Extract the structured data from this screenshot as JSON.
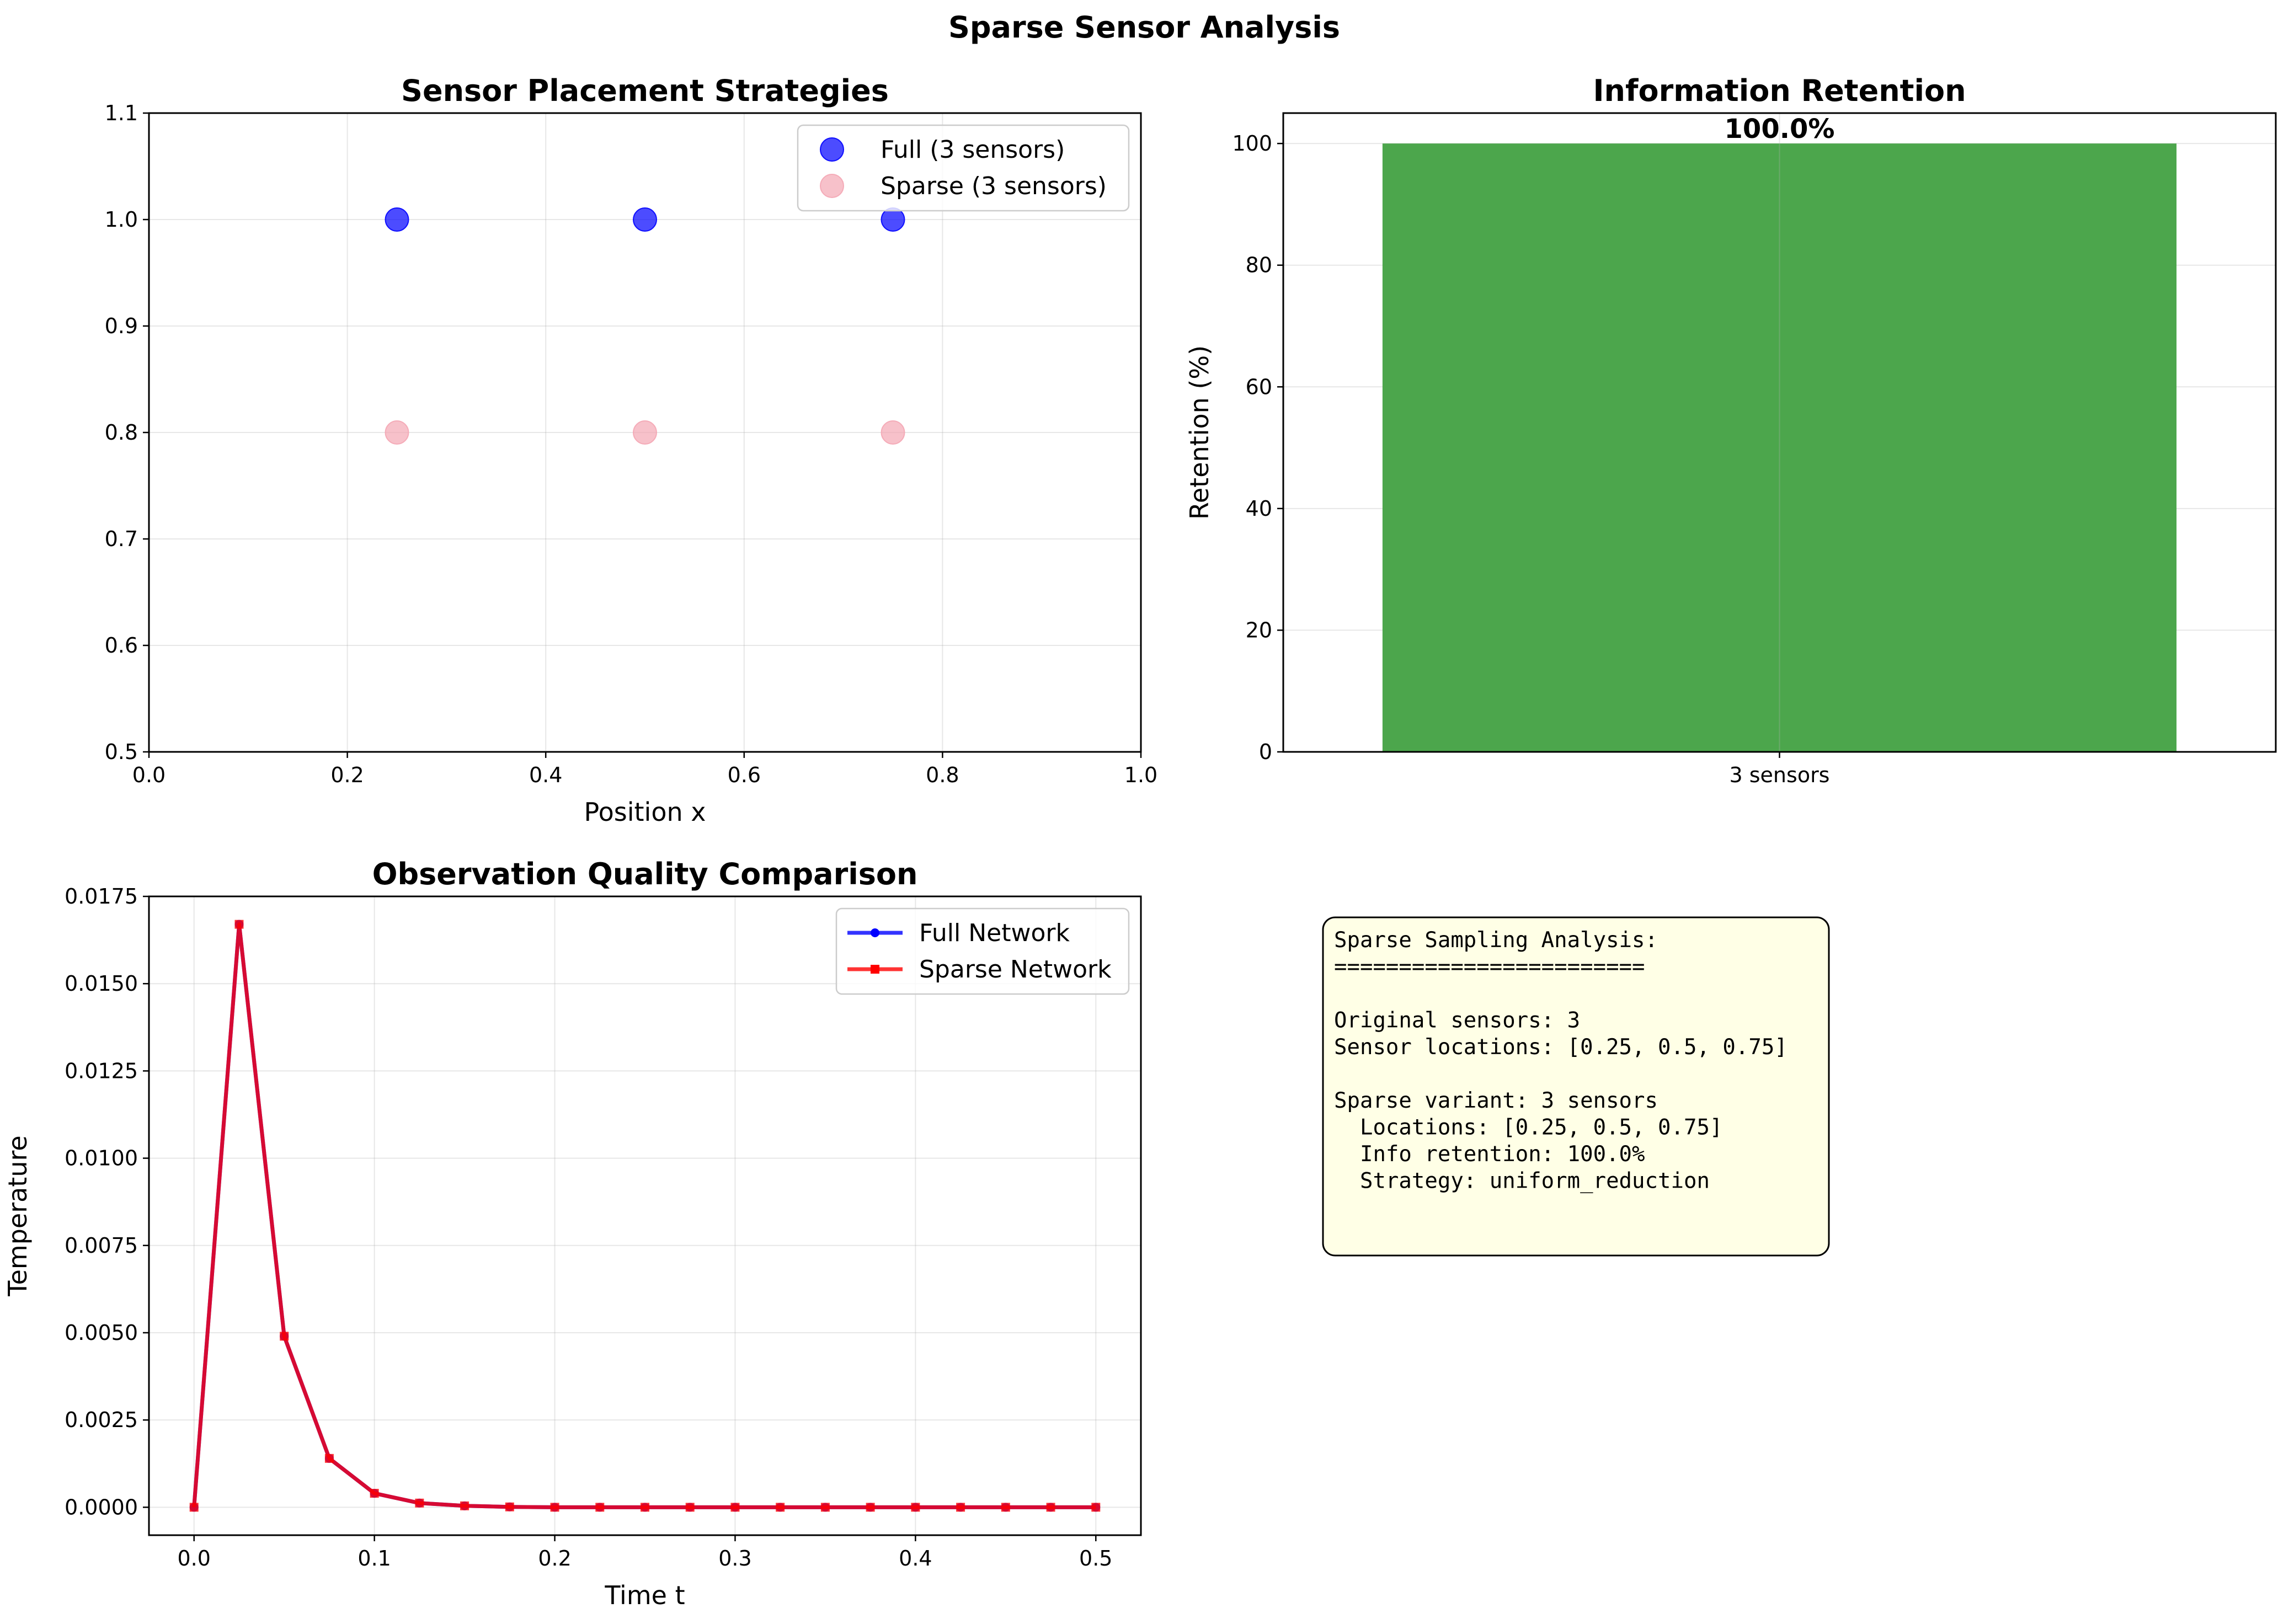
{
  "figure": {
    "suptitle": "Sparse Sensor Analysis"
  },
  "chart_data": [
    {
      "type": "scatter",
      "title": "Sensor Placement Strategies",
      "xlabel": "Position x",
      "ylabel": "",
      "xlim": [
        0.0,
        1.0
      ],
      "ylim": [
        0.5,
        1.1
      ],
      "xticks": [
        "0.0",
        "0.2",
        "0.4",
        "0.6",
        "0.8",
        "1.0"
      ],
      "xtick_values": [
        0.0,
        0.2,
        0.4,
        0.6,
        0.8,
        1.0
      ],
      "yticks": [
        "0.5",
        "0.6",
        "0.7",
        "0.8",
        "0.9",
        "1.0",
        "1.1"
      ],
      "ytick_values": [
        0.5,
        0.6,
        0.7,
        0.8,
        0.9,
        1.0,
        1.1
      ],
      "grid": true,
      "legend_position": "upper-right",
      "series": [
        {
          "name": "Full (3 sensors)",
          "color": "#0000ff",
          "x": [
            0.25,
            0.5,
            0.75
          ],
          "y": [
            1.0,
            1.0,
            1.0
          ]
        },
        {
          "name": "Sparse (3 sensors)",
          "color": "#f4a6b4",
          "x": [
            0.25,
            0.5,
            0.75
          ],
          "y": [
            0.8,
            0.8,
            0.8
          ]
        }
      ]
    },
    {
      "type": "bar",
      "title": "Information Retention",
      "xlabel": "",
      "ylabel": "Retention (%)",
      "categories": [
        "3 sensors"
      ],
      "values": [
        100.0
      ],
      "data_labels": [
        "100.0%"
      ],
      "color": "#4ca64c",
      "ylim": [
        0,
        105
      ],
      "yticks": [
        "0",
        "20",
        "40",
        "60",
        "80",
        "100"
      ],
      "ytick_values": [
        0,
        20,
        40,
        60,
        80,
        100
      ],
      "grid": true
    },
    {
      "type": "line",
      "title": "Observation Quality Comparison",
      "xlabel": "Time t",
      "ylabel": "Temperature",
      "xlim": [
        -0.025,
        0.525
      ],
      "ylim": [
        -0.0008,
        0.0175
      ],
      "xticks": [
        "0.0",
        "0.1",
        "0.2",
        "0.3",
        "0.4",
        "0.5"
      ],
      "xtick_values": [
        0.0,
        0.1,
        0.2,
        0.3,
        0.4,
        0.5
      ],
      "yticks": [
        "0.0000",
        "0.0025",
        "0.0050",
        "0.0075",
        "0.0100",
        "0.0125",
        "0.0150",
        "0.0175"
      ],
      "ytick_values": [
        0.0,
        0.0025,
        0.005,
        0.0075,
        0.01,
        0.0125,
        0.015,
        0.0175
      ],
      "grid": true,
      "legend_position": "upper-right",
      "x": [
        0.0,
        0.025,
        0.05,
        0.075,
        0.1,
        0.125,
        0.15,
        0.175,
        0.2,
        0.225,
        0.25,
        0.275,
        0.3,
        0.325,
        0.35,
        0.375,
        0.4,
        0.425,
        0.45,
        0.475,
        0.5
      ],
      "series": [
        {
          "name": "Full Network",
          "color": "#0000ff",
          "marker": "circle",
          "values": [
            0.0,
            0.0167,
            0.0049,
            0.0014,
            0.0004,
            0.00012,
            4e-05,
            1e-05,
            0.0,
            0.0,
            0.0,
            0.0,
            0.0,
            0.0,
            0.0,
            0.0,
            0.0,
            0.0,
            0.0,
            0.0,
            0.0
          ]
        },
        {
          "name": "Sparse Network",
          "color": "#ff0000",
          "marker": "square",
          "values": [
            0.0,
            0.0167,
            0.0049,
            0.0014,
            0.0004,
            0.00012,
            4e-05,
            1e-05,
            0.0,
            0.0,
            0.0,
            0.0,
            0.0,
            0.0,
            0.0,
            0.0,
            0.0,
            0.0,
            0.0,
            0.0,
            0.0
          ]
        }
      ]
    }
  ],
  "text_panel": {
    "lines": [
      "Sparse Sampling Analysis:",
      "========================",
      "",
      "Original sensors: 3",
      "Sensor locations: [0.25, 0.5, 0.75]",
      "",
      "Sparse variant: 3 sensors",
      "  Locations: [0.25, 0.5, 0.75]",
      "  Info retention: 100.0%",
      "  Strategy: uniform_reduction"
    ],
    "background": "#ffffe6"
  }
}
